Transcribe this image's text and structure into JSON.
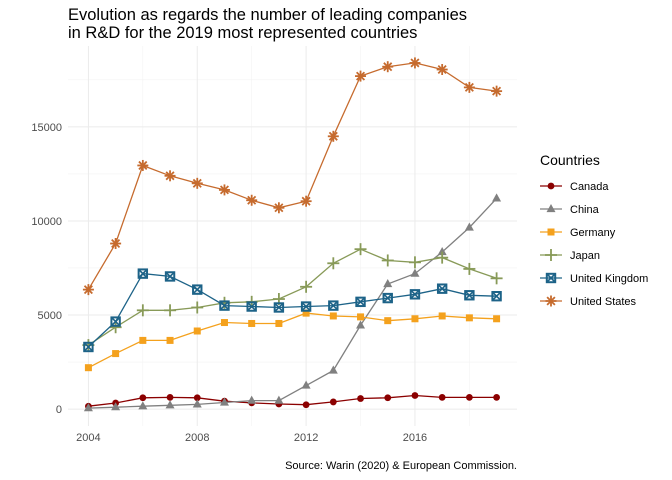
{
  "chart_data": {
    "type": "line",
    "title_lines": [
      "Evolution as regards the number of leading companies",
      "in R&D for the 2019 most represented countries"
    ],
    "caption": "Source: Warin (2020) & European Commission.",
    "legend": {
      "title": "Countries",
      "placement": "right"
    },
    "xlim": [
      2003.25,
      2019.75
    ],
    "ylim": [
      -900,
      19300
    ],
    "x_ticks": [
      2004,
      2008,
      2012,
      2016
    ],
    "x_tick_labels": [
      "2004",
      "2008",
      "2012",
      "2016"
    ],
    "y_ticks": [
      0,
      5000,
      10000,
      15000
    ],
    "y_tick_labels": [
      "0",
      "5000",
      "10000",
      "15000"
    ],
    "grid": true,
    "x": [
      2004,
      2005,
      2006,
      2007,
      2008,
      2009,
      2010,
      2011,
      2012,
      2013,
      2014,
      2015,
      2016,
      2017,
      2018,
      2019
    ],
    "series": [
      {
        "name": "Canada",
        "color": "#8B0000",
        "marker": "circle",
        "values": [
          150,
          320,
          600,
          620,
          600,
          420,
          330,
          270,
          230,
          380,
          560,
          600,
          720,
          620,
          620,
          620
        ]
      },
      {
        "name": "China",
        "color": "#808080",
        "marker": "triangle",
        "values": [
          50,
          100,
          150,
          200,
          250,
          350,
          450,
          450,
          1250,
          2050,
          4450,
          6650,
          7200,
          8350,
          9650,
          11200
        ]
      },
      {
        "name": "Germany",
        "color": "#F4A11D",
        "marker": "square",
        "values": [
          2200,
          2950,
          3650,
          3650,
          4150,
          4600,
          4550,
          4550,
          5100,
          4950,
          4900,
          4700,
          4800,
          4950,
          4850,
          4800
        ]
      },
      {
        "name": "Japan",
        "color": "#889A58",
        "marker": "plus",
        "values": [
          3400,
          4350,
          5250,
          5250,
          5400,
          5650,
          5700,
          5850,
          6500,
          7750,
          8500,
          7900,
          7800,
          8050,
          7450,
          6950
        ]
      },
      {
        "name": "United Kingdom",
        "color": "#1D6388",
        "marker": "square-x",
        "values": [
          3300,
          4650,
          7200,
          7050,
          6350,
          5500,
          5450,
          5400,
          5450,
          5500,
          5700,
          5900,
          6100,
          6400,
          6050,
          6000
        ]
      },
      {
        "name": "United States",
        "color": "#C66B2E",
        "marker": "asterisk",
        "values": [
          6350,
          8800,
          12950,
          12400,
          12000,
          11650,
          11100,
          10700,
          11050,
          14500,
          17700,
          18200,
          18400,
          18050,
          17100,
          16900
        ]
      }
    ]
  }
}
